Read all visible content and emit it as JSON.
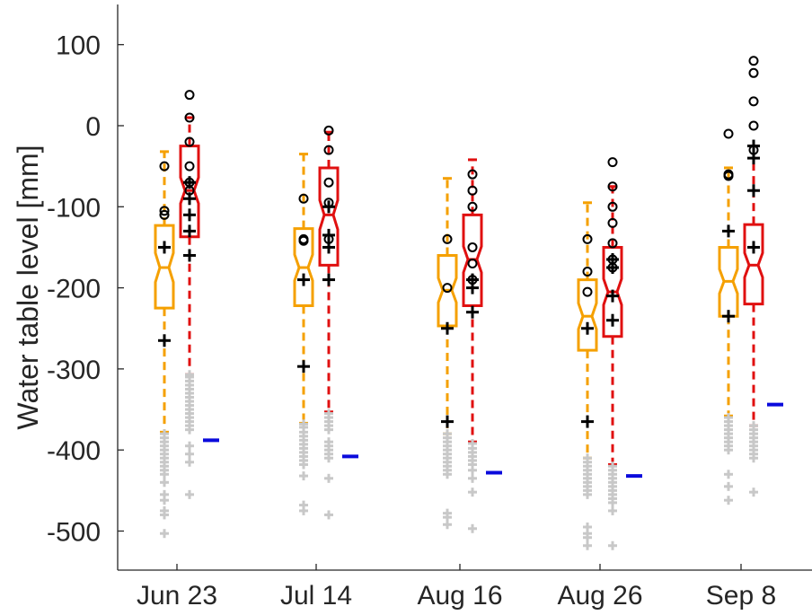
{
  "chart_data": {
    "type": "boxplot",
    "ylabel": "Water table level [mm]",
    "xlabel": "",
    "ylim": [
      -545,
      148
    ],
    "yticks": [
      100,
      0,
      -100,
      -200,
      -300,
      -400,
      -500
    ],
    "ytick_labels": [
      "100",
      "0",
      "-100",
      "-200",
      "-300",
      "-400",
      "-500"
    ],
    "categories": [
      "Jun 23",
      "Jul 14",
      "Aug 16",
      "Aug 26",
      "Sep 8"
    ],
    "grid": false,
    "legend": "none",
    "colors": {
      "orange": "#f5a000",
      "red": "#e01010",
      "blue": "#0a0adc",
      "outlier_gray": "#c8c8c8",
      "black": "#000000",
      "axis": "#262626"
    },
    "boxes": [
      {
        "category": "Jun 23",
        "color": "orange",
        "q1": -225,
        "median": -175,
        "q3": -123,
        "notch_low": -193,
        "notch_high": -157,
        "whisker_high": -32,
        "whisker_low": -378,
        "gray_outliers": [
          -380,
          -385,
          -390,
          -395,
          -400,
          -405,
          -410,
          -415,
          -420,
          -425,
          -430,
          -440,
          -455,
          -462,
          -475,
          -480,
          -503
        ],
        "circles": [
          -50,
          -105,
          -110
        ],
        "plus": [
          -150,
          -265
        ]
      },
      {
        "category": "Jun 23",
        "color": "red",
        "q1": -137,
        "median": -80,
        "q3": -25,
        "notch_low": -96,
        "notch_high": -64,
        "whisker_high": 10,
        "whisker_low": -307,
        "gray_outliers": [
          -307,
          -310,
          -315,
          -320,
          -325,
          -330,
          -335,
          -340,
          -345,
          -350,
          -355,
          -360,
          -365,
          -370,
          -375,
          -395,
          -405,
          -415,
          -455
        ],
        "circles": [
          38,
          10,
          -20,
          -50,
          -70,
          -80
        ],
        "plus": [
          -70,
          -90,
          -110,
          -130,
          -160
        ]
      },
      {
        "category": "Jul 14",
        "color": "orange",
        "q1": -222,
        "median": -175,
        "q3": -127,
        "notch_low": -191,
        "notch_high": -159,
        "whisker_high": -35,
        "whisker_low": -367,
        "gray_outliers": [
          -368,
          -372,
          -378,
          -383,
          -388,
          -393,
          -398,
          -403,
          -408,
          -413,
          -418,
          -432,
          -468,
          -475
        ],
        "circles": [
          -90,
          -140,
          -142
        ],
        "plus": [
          -190,
          -297
        ]
      },
      {
        "category": "Jul 14",
        "color": "red",
        "q1": -172,
        "median": -110,
        "q3": -52,
        "notch_low": -128,
        "notch_high": -92,
        "whisker_high": -8,
        "whisker_low": -353,
        "gray_outliers": [
          -355,
          -360,
          -365,
          -370,
          -375,
          -390,
          -395,
          -400,
          -405,
          -410,
          -435,
          -480
        ],
        "circles": [
          -6,
          -30,
          -70,
          -95,
          -140
        ],
        "plus": [
          -100,
          -135,
          -150,
          -190
        ]
      },
      {
        "category": "Aug 16",
        "color": "orange",
        "q1": -247,
        "median": -203,
        "q3": -160,
        "notch_low": -218,
        "notch_high": -188,
        "whisker_high": -65,
        "whisker_low": -380,
        "gray_outliers": [
          -380,
          -385,
          -390,
          -395,
          -400,
          -405,
          -410,
          -415,
          -420,
          -425,
          -430,
          -478,
          -483,
          -492
        ],
        "circles": [
          -140,
          -200
        ],
        "plus": [
          -250,
          -365
        ]
      },
      {
        "category": "Aug 16",
        "color": "red",
        "q1": -222,
        "median": -165,
        "q3": -110,
        "notch_low": -181,
        "notch_high": -149,
        "whisker_high": -42,
        "whisker_low": -390,
        "gray_outliers": [
          -392,
          -398,
          -403,
          -408,
          -413,
          -418,
          -425,
          -435,
          -452,
          -497
        ],
        "circles": [
          -60,
          -80,
          -100,
          -150,
          -170,
          -190
        ],
        "plus": [
          -190,
          -200,
          -230
        ]
      },
      {
        "category": "Aug 26",
        "color": "orange",
        "q1": -277,
        "median": -235,
        "q3": -190,
        "notch_low": -251,
        "notch_high": -219,
        "whisker_high": -95,
        "whisker_low": -410,
        "gray_outliers": [
          -410,
          -415,
          -420,
          -425,
          -430,
          -435,
          -440,
          -445,
          -450,
          -455,
          -495,
          -503,
          -508,
          -518
        ],
        "circles": [
          -140,
          -180,
          -205
        ],
        "plus": [
          -250,
          -365
        ]
      },
      {
        "category": "Aug 26",
        "color": "red",
        "q1": -260,
        "median": -205,
        "q3": -150,
        "notch_low": -221,
        "notch_high": -189,
        "whisker_high": -75,
        "whisker_low": -418,
        "gray_outliers": [
          -420,
          -425,
          -430,
          -435,
          -440,
          -445,
          -450,
          -455,
          -460,
          -465,
          -475,
          -518
        ],
        "circles": [
          -45,
          -75,
          -100,
          -120,
          -145,
          -165,
          -175
        ],
        "plus": [
          -165,
          -175,
          -210,
          -240
        ]
      },
      {
        "category": "Sep 8",
        "color": "orange",
        "q1": -235,
        "median": -192,
        "q3": -150,
        "notch_low": -207,
        "notch_high": -177,
        "whisker_high": -52,
        "whisker_low": -358,
        "gray_outliers": [
          -360,
          -365,
          -370,
          -375,
          -380,
          -385,
          -390,
          -395,
          -400,
          -430,
          -445,
          -462
        ],
        "circles": [
          -10,
          -60,
          -62
        ],
        "plus": [
          -130,
          -235
        ]
      },
      {
        "category": "Sep 8",
        "color": "red",
        "q1": -220,
        "median": -172,
        "q3": -122,
        "notch_low": -187,
        "notch_high": -157,
        "whisker_high": -25,
        "whisker_low": -370,
        "gray_outliers": [
          -370,
          -375,
          -380,
          -385,
          -390,
          -395,
          -400,
          -405,
          -410,
          -452
        ],
        "circles": [
          80,
          65,
          30,
          0,
          -30
        ],
        "plus": [
          -25,
          -40,
          -80,
          -150
        ]
      }
    ],
    "blue_markers": [
      {
        "category": "Jun 23",
        "value": -388
      },
      {
        "category": "Jul 14",
        "value": -408
      },
      {
        "category": "Aug 16",
        "value": -428
      },
      {
        "category": "Aug 26",
        "value": -432
      },
      {
        "category": "Sep 8",
        "value": -344
      }
    ]
  }
}
